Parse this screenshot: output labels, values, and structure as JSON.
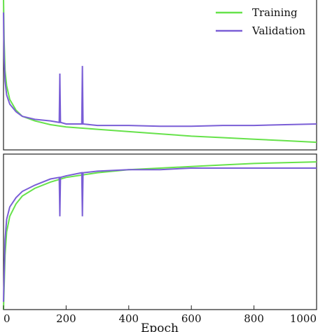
{
  "chart_data": [
    {
      "type": "line",
      "panel": "top",
      "xlabel": "",
      "ylabel": "",
      "xlim": [
        0,
        1000
      ],
      "ylim": [
        0,
        1
      ],
      "grid": false,
      "legend": {
        "placement": "top-right"
      },
      "series": [
        {
          "name": "Training",
          "color": "#66e24a",
          "x": [
            0,
            2,
            5,
            10,
            20,
            40,
            60,
            100,
            150,
            200,
            300,
            400,
            500,
            600,
            700,
            800,
            900,
            1000
          ],
          "values": [
            1.0,
            0.72,
            0.52,
            0.42,
            0.33,
            0.26,
            0.22,
            0.19,
            0.165,
            0.15,
            0.135,
            0.12,
            0.105,
            0.09,
            0.08,
            0.07,
            0.06,
            0.05
          ]
        },
        {
          "name": "Validation",
          "color": "#7a5ed6",
          "x": [
            0,
            2,
            5,
            10,
            20,
            40,
            60,
            100,
            150,
            178,
            180,
            182,
            200,
            250,
            252,
            254,
            300,
            400,
            500,
            600,
            700,
            800,
            900,
            1000
          ],
          "values": [
            0.9,
            0.6,
            0.45,
            0.36,
            0.3,
            0.25,
            0.22,
            0.2,
            0.19,
            0.18,
            0.5,
            0.18,
            0.17,
            0.17,
            0.55,
            0.17,
            0.16,
            0.16,
            0.155,
            0.155,
            0.16,
            0.16,
            0.165,
            0.17
          ]
        }
      ],
      "xticks": [],
      "yticks": []
    },
    {
      "type": "line",
      "panel": "bottom",
      "xlabel": "Epoch",
      "ylabel": "",
      "xlim": [
        0,
        1000
      ],
      "ylim": [
        0,
        1
      ],
      "grid": false,
      "series": [
        {
          "name": "Training",
          "color": "#66e24a",
          "x": [
            0,
            5,
            10,
            20,
            40,
            60,
            100,
            150,
            200,
            300,
            400,
            500,
            600,
            700,
            800,
            900,
            1000
          ],
          "values": [
            0.0,
            0.35,
            0.5,
            0.6,
            0.68,
            0.73,
            0.78,
            0.82,
            0.85,
            0.88,
            0.9,
            0.91,
            0.92,
            0.93,
            0.94,
            0.945,
            0.95
          ]
        },
        {
          "name": "Validation",
          "color": "#7a5ed6",
          "x": [
            0,
            5,
            10,
            20,
            40,
            60,
            100,
            150,
            178,
            180,
            182,
            200,
            250,
            252,
            254,
            300,
            400,
            500,
            600,
            700,
            800,
            900,
            1000
          ],
          "values": [
            0.05,
            0.45,
            0.58,
            0.66,
            0.72,
            0.76,
            0.8,
            0.84,
            0.85,
            0.6,
            0.85,
            0.86,
            0.88,
            0.6,
            0.88,
            0.89,
            0.9,
            0.9,
            0.91,
            0.91,
            0.91,
            0.91,
            0.91
          ]
        }
      ],
      "xticks": [
        "0",
        "200",
        "400",
        "600",
        "800",
        "1000"
      ],
      "yticks": []
    }
  ]
}
